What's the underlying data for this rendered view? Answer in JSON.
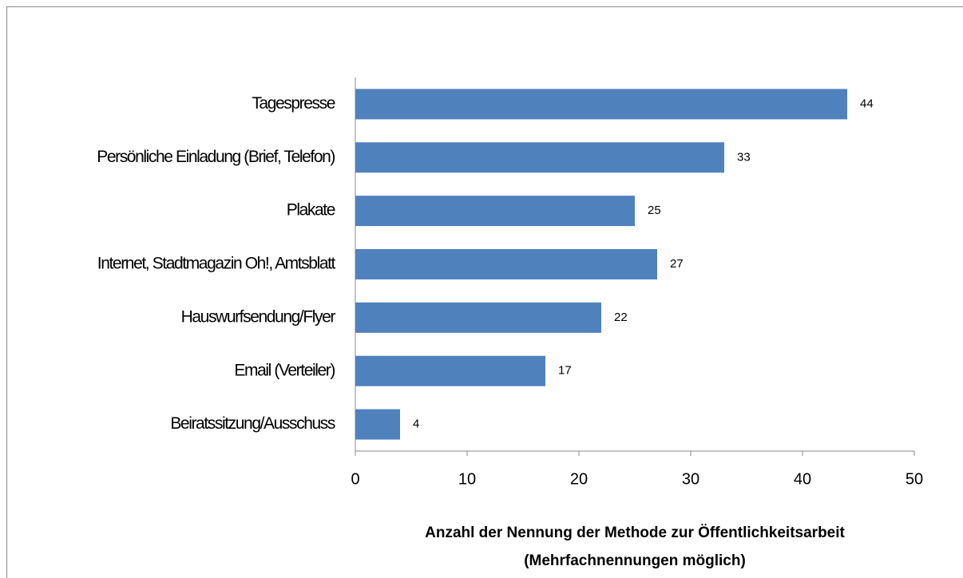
{
  "chart_data": {
    "type": "bar",
    "orientation": "horizontal",
    "categories": [
      "Tagespresse",
      "Persönliche Einladung (Brief, Telefon)",
      "Plakate",
      "Internet, Stadtmagazin Oh!, Amtsblatt",
      "Hauswurfsendung/Flyer",
      "Email (Verteiler)",
      "Beiratssitzung/Ausschuss"
    ],
    "values": [
      44,
      33,
      25,
      27,
      22,
      17,
      4
    ],
    "color": "#4f81bd",
    "xlim": [
      0,
      50
    ],
    "xticks": [
      0,
      10,
      20,
      30,
      40,
      50
    ],
    "xlabel": [
      "Anzahl der Nennung der Methode zur Öffentlichkeitsarbeit",
      "(Mehrfachnennungen möglich)"
    ],
    "grid": false
  }
}
